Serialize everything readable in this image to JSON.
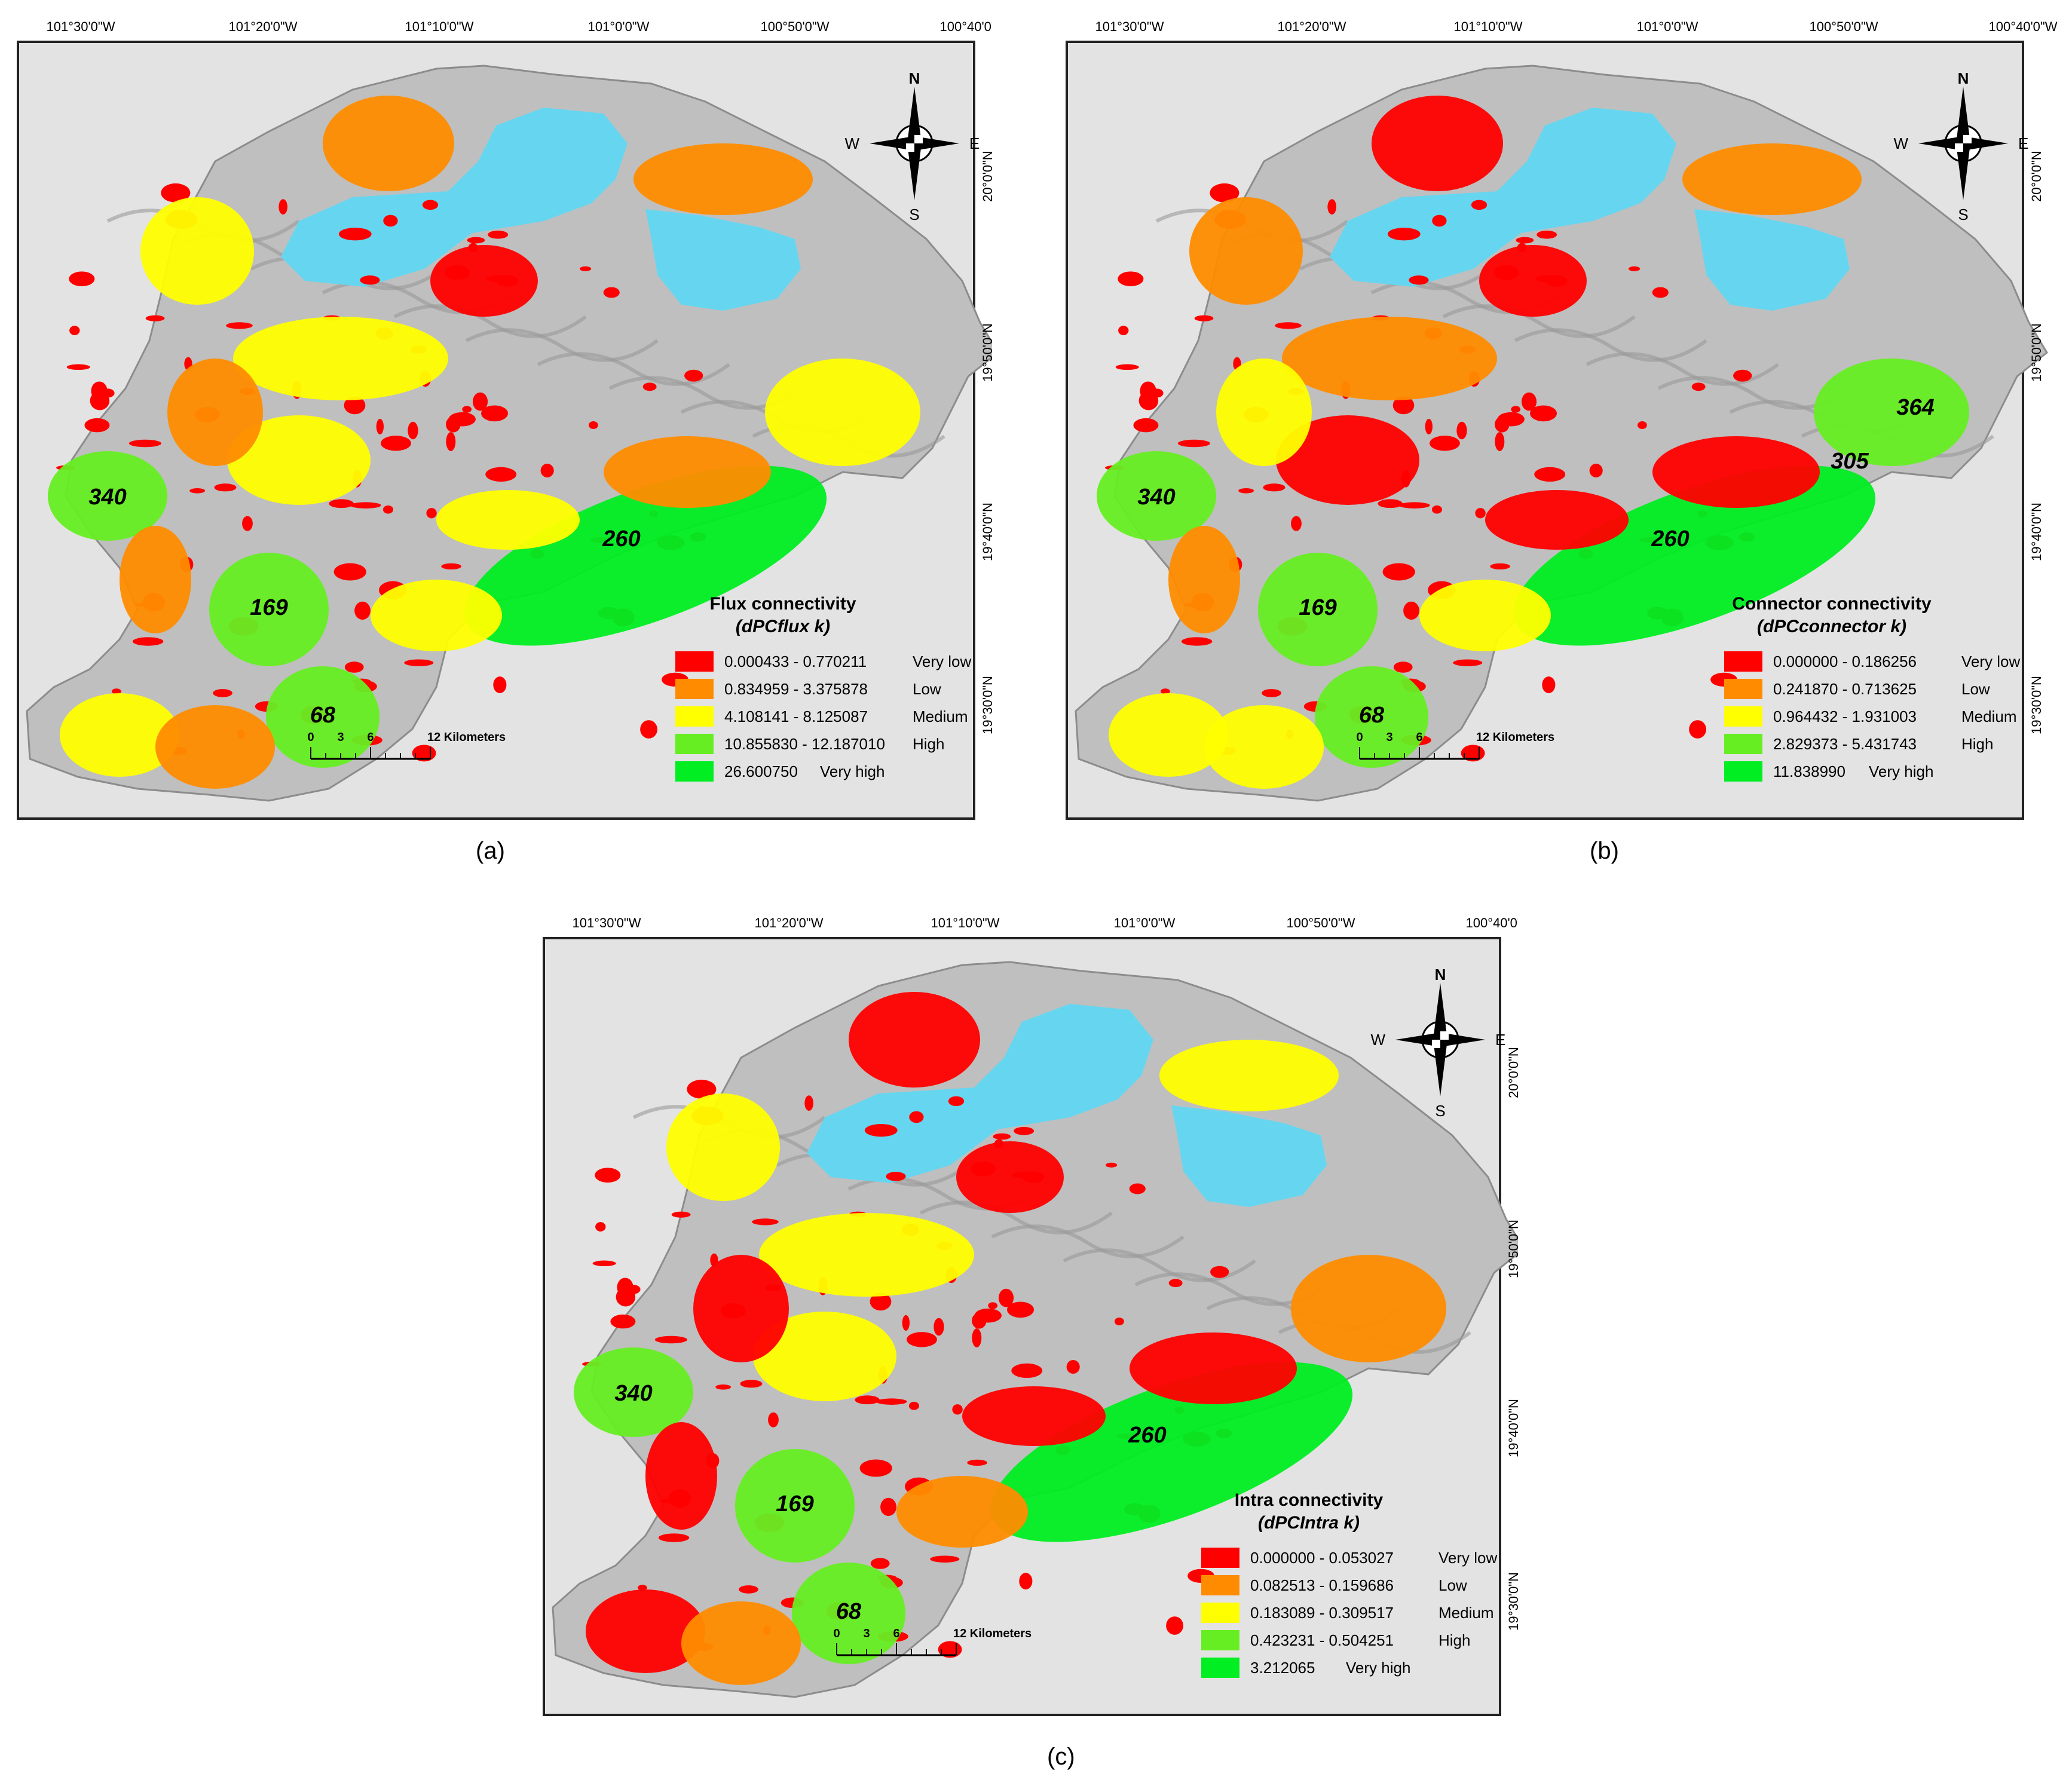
{
  "figure": {
    "coord_labels": {
      "longitudes": [
        "101°30'0\"W",
        "101°20'0\"W",
        "101°10'0\"W",
        "101°0'0\"W",
        "100°50'0\"W",
        "100°40'0\"W"
      ],
      "latitudes": [
        "20°0'0\"N",
        "19°50'0\"N",
        "19°40'0\"N",
        "19°30'0\"N"
      ]
    },
    "compass": {
      "n": "N",
      "s": "S",
      "e": "E",
      "w": "W"
    },
    "scale_bar": {
      "ticks": [
        "0",
        "3",
        "6"
      ],
      "label": "12 Kilometers"
    },
    "colors": {
      "very_low": "#ff0000",
      "low": "#ff8c00",
      "medium": "#ffff00",
      "high": "#66ee22",
      "very_high": "#00ee22",
      "lake": "#66d6f0",
      "terrain": "#bfbfbf",
      "background": "#e3e3e3"
    },
    "panels": [
      {
        "id": "a",
        "caption": "(a)",
        "legend_title": "Flux connectivity",
        "legend_subtitle": "(dPCflux k)",
        "legend": [
          {
            "range": "0.000433 -   0.770211",
            "class": "Very low"
          },
          {
            "range": "0.834959 -   3.375878",
            "class": "Low"
          },
          {
            "range": "4.108141 -   8.125087",
            "class": "Medium"
          },
          {
            "range": "10.855830 - 12.187010",
            "class": "High"
          },
          {
            "range": "26.600750",
            "class": "Very high"
          }
        ],
        "patch_labels": [
          "340",
          "169",
          "68",
          "260"
        ]
      },
      {
        "id": "b",
        "caption": "(b)",
        "legend_title": "Connector connectivity",
        "legend_subtitle": "(dPCconnector k)",
        "legend": [
          {
            "range": "0.000000 - 0.186256",
            "class": "Very low"
          },
          {
            "range": "0.241870 - 0.713625",
            "class": "Low"
          },
          {
            "range": "0.964432 - 1.931003",
            "class": "Medium"
          },
          {
            "range": "2.829373 - 5.431743",
            "class": "High"
          },
          {
            "range": "11.838990",
            "class": "Very high"
          }
        ],
        "patch_labels": [
          "340",
          "169",
          "68",
          "260",
          "305",
          "364"
        ]
      },
      {
        "id": "c",
        "caption": "(c)",
        "legend_title": "Intra connectivity",
        "legend_subtitle": "(dPCIntra k)",
        "legend": [
          {
            "range": "0.000000 - 0.053027",
            "class": "Very low"
          },
          {
            "range": "0.082513 - 0.159686",
            "class": "Low"
          },
          {
            "range": "0.183089 - 0.309517",
            "class": "Medium"
          },
          {
            "range": "0.423231 - 0.504251",
            "class": "High"
          },
          {
            "range": "3.212065",
            "class": "Very high"
          }
        ],
        "patch_labels": [
          "340",
          "169",
          "68",
          "260"
        ]
      }
    ]
  }
}
